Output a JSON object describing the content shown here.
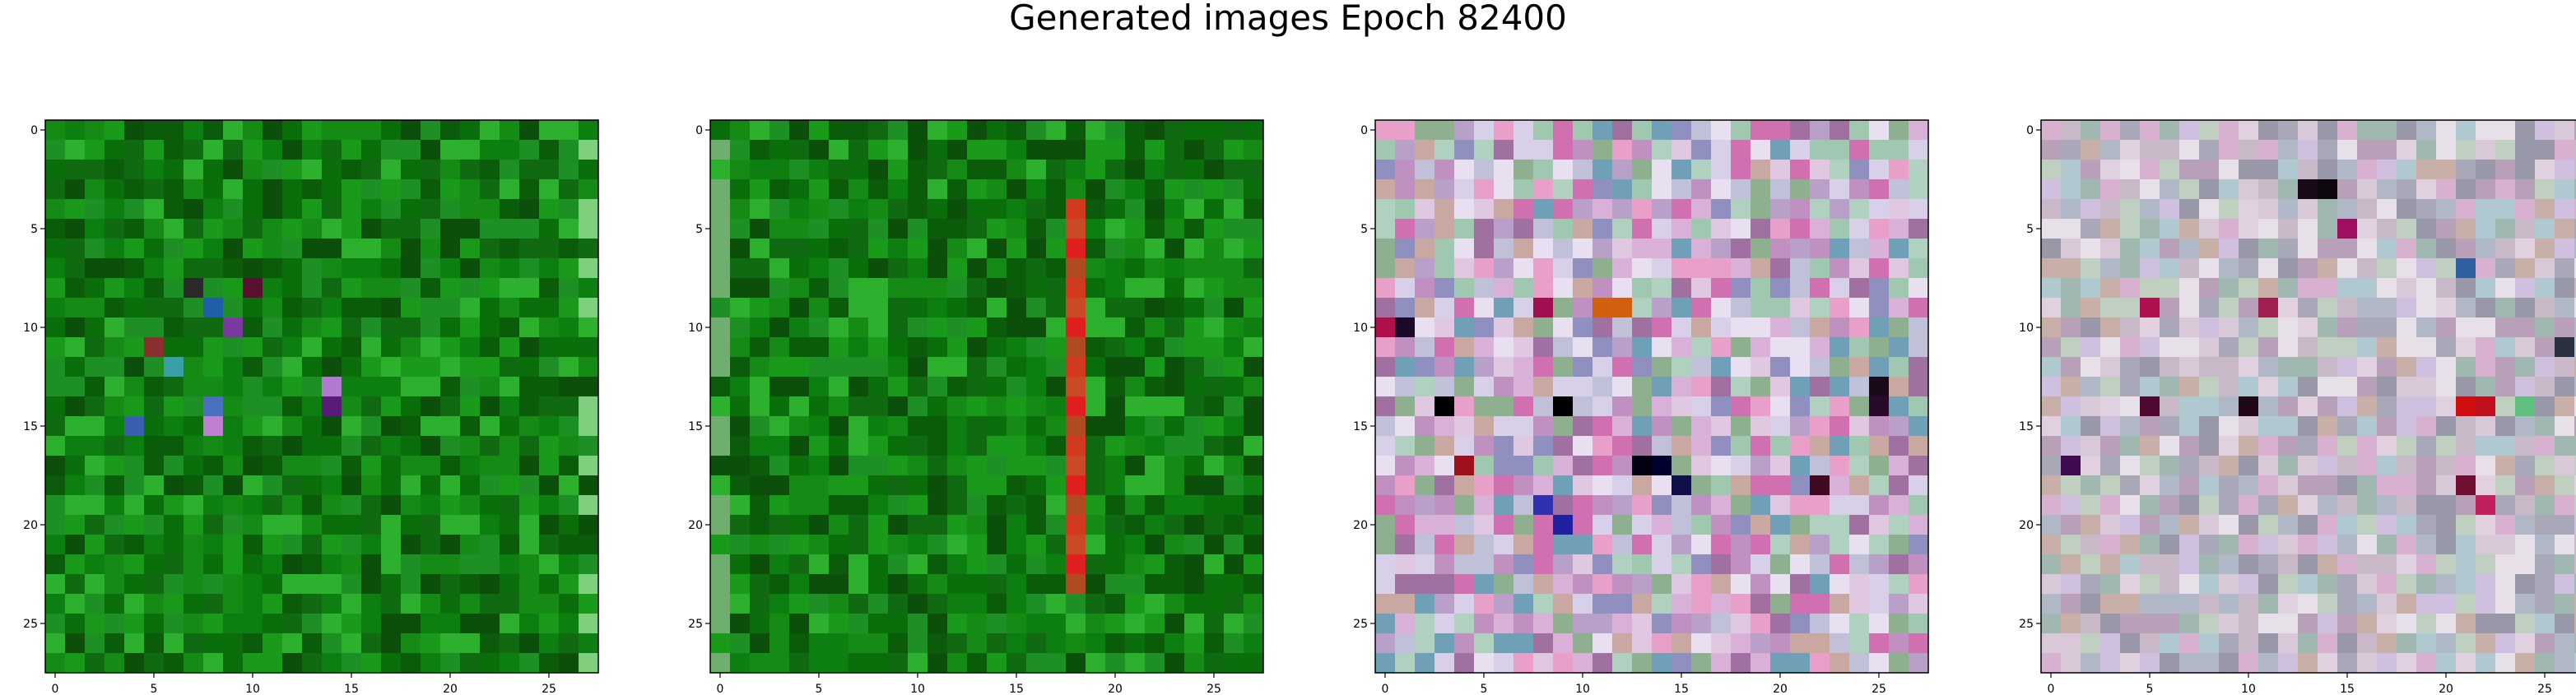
{
  "figure": {
    "title": "Generated images Epoch 82400"
  },
  "chart_data": [
    {
      "type": "heatmap",
      "rows": 28,
      "cols": 28,
      "xlim": [
        -0.5,
        27.5
      ],
      "ylim": [
        27.5,
        -0.5
      ],
      "xticks": [
        0,
        5,
        10,
        15,
        20,
        25
      ],
      "yticks": [
        0,
        5,
        10,
        15,
        20,
        25
      ],
      "palette": [
        "#0a6e0a",
        "#0d7f10",
        "#0a5c0a",
        "#1a9a1a",
        "#2db02d",
        "#106a12",
        "#158a15",
        "#0b4f0b",
        "#1e8f24"
      ],
      "accents": [
        {
          "row": 8,
          "col": 7,
          "color": "#2a2a2a"
        },
        {
          "row": 8,
          "col": 10,
          "color": "#5a1030"
        },
        {
          "row": 9,
          "col": 8,
          "color": "#1f5fa8"
        },
        {
          "row": 10,
          "col": 9,
          "color": "#7a3aa0"
        },
        {
          "row": 11,
          "col": 5,
          "color": "#8a3030"
        },
        {
          "row": 12,
          "col": 6,
          "color": "#3aa0a8"
        },
        {
          "row": 13,
          "col": 14,
          "color": "#b07ad0"
        },
        {
          "row": 14,
          "col": 8,
          "color": "#4a70c0"
        },
        {
          "row": 14,
          "col": 14,
          "color": "#5a1a7a"
        },
        {
          "row": 15,
          "col": 4,
          "color": "#3a5fb0"
        },
        {
          "row": 15,
          "col": 8,
          "color": "#c080d0"
        }
      ],
      "edge_col": 27,
      "edge_color": "#7fcf7f"
    },
    {
      "type": "heatmap",
      "rows": 28,
      "cols": 28,
      "xlim": [
        -0.5,
        27.5
      ],
      "ylim": [
        27.5,
        -0.5
      ],
      "xticks": [
        0,
        5,
        10,
        15,
        20,
        25
      ],
      "yticks": [
        0,
        5,
        10,
        15,
        20,
        25
      ],
      "palette": [
        "#0a6e0a",
        "#0d7f10",
        "#0a5c0a",
        "#1a9a1a",
        "#2db02d",
        "#106a12",
        "#158a15",
        "#0b4f0b",
        "#1e8f24"
      ],
      "stripe_col": 18,
      "stripe_rows": [
        4,
        23
      ],
      "stripe_colors": [
        "#d23a20",
        "#c94a25",
        "#e02020",
        "#b04a20"
      ],
      "edge_col": 0,
      "edge_color": "#6fae6f"
    },
    {
      "type": "heatmap",
      "rows": 28,
      "cols": 28,
      "xlim": [
        -0.5,
        27.5
      ],
      "ylim": [
        27.5,
        -0.5
      ],
      "xticks": [
        0,
        5,
        10,
        15,
        20,
        25
      ],
      "yticks": [
        0,
        5,
        10,
        15,
        20,
        25
      ],
      "palette": [
        "#d8b0d8",
        "#b8a0c8",
        "#e0c8e0",
        "#c090c0",
        "#a0c8b0",
        "#d8d0e8",
        "#9090c0",
        "#e8a0c8",
        "#b0d0c0",
        "#c8a8a0",
        "#8fb08f",
        "#d070b0",
        "#e8e0f0",
        "#a070a0",
        "#70a0b8",
        "#c0c0d8"
      ],
      "accents": [
        {
          "row": 10,
          "col": 0,
          "color": "#b0104a"
        },
        {
          "row": 10,
          "col": 1,
          "color": "#1a0a2a"
        },
        {
          "row": 9,
          "col": 11,
          "color": "#d06010"
        },
        {
          "row": 9,
          "col": 12,
          "color": "#d06010"
        },
        {
          "row": 14,
          "col": 3,
          "color": "#000000"
        },
        {
          "row": 14,
          "col": 9,
          "color": "#000000"
        },
        {
          "row": 13,
          "col": 25,
          "color": "#1a0a1a"
        },
        {
          "row": 14,
          "col": 25,
          "color": "#2a0a2a"
        },
        {
          "row": 17,
          "col": 4,
          "color": "#a0101a"
        },
        {
          "row": 17,
          "col": 13,
          "color": "#000010"
        },
        {
          "row": 17,
          "col": 14,
          "color": "#000030"
        },
        {
          "row": 18,
          "col": 15,
          "color": "#10104a"
        },
        {
          "row": 19,
          "col": 8,
          "color": "#3030b0"
        },
        {
          "row": 20,
          "col": 9,
          "color": "#2020a0"
        },
        {
          "row": 18,
          "col": 22,
          "color": "#400a20"
        },
        {
          "row": 9,
          "col": 8,
          "color": "#a01050"
        }
      ]
    },
    {
      "type": "heatmap",
      "rows": 28,
      "cols": 28,
      "xlim": [
        -0.5,
        27.5
      ],
      "ylim": [
        27.5,
        -0.5
      ],
      "xticks": [
        0,
        5,
        10,
        15,
        20,
        25
      ],
      "yticks": [
        0,
        5,
        10,
        15,
        20,
        25
      ],
      "palette": [
        "#c8b8c8",
        "#b0b8c8",
        "#d8c8d8",
        "#a8a8b8",
        "#c0d0c0",
        "#d0c0e0",
        "#b8a0b8",
        "#e0d0e0",
        "#a0b8b0",
        "#c8b0a8",
        "#b0c8d0",
        "#d8b0d0",
        "#e8e0e8",
        "#9898a8"
      ],
      "accents": [
        {
          "row": 3,
          "col": 13,
          "color": "#1a0a1a"
        },
        {
          "row": 3,
          "col": 14,
          "color": "#100810"
        },
        {
          "row": 5,
          "col": 15,
          "color": "#a01060"
        },
        {
          "row": 7,
          "col": 21,
          "color": "#3060a0"
        },
        {
          "row": 9,
          "col": 5,
          "color": "#b01050"
        },
        {
          "row": 9,
          "col": 11,
          "color": "#a02050"
        },
        {
          "row": 14,
          "col": 5,
          "color": "#500a30"
        },
        {
          "row": 14,
          "col": 10,
          "color": "#200818"
        },
        {
          "row": 14,
          "col": 21,
          "color": "#d01010"
        },
        {
          "row": 14,
          "col": 22,
          "color": "#c01020"
        },
        {
          "row": 14,
          "col": 24,
          "color": "#60c080"
        },
        {
          "row": 17,
          "col": 1,
          "color": "#400a50"
        },
        {
          "row": 18,
          "col": 21,
          "color": "#701030"
        },
        {
          "row": 19,
          "col": 22,
          "color": "#c02060"
        },
        {
          "row": 11,
          "col": 26,
          "color": "#2a3040"
        }
      ]
    }
  ]
}
